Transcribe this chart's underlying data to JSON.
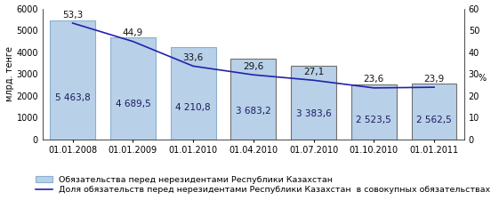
{
  "categories": [
    "01.01.2008",
    "01.01.2009",
    "01.01.2010",
    "01.04.2010",
    "01.07.2010",
    "01.10.2010",
    "01.01.2011"
  ],
  "bar_values": [
    5463.8,
    4689.5,
    4210.8,
    3683.2,
    3383.6,
    2523.5,
    2562.5
  ],
  "bar_labels": [
    "5 463,8",
    "4 689,5",
    "4 210,8",
    "3 683,2",
    "3 383,6",
    "2 523,5",
    "2 562,5"
  ],
  "line_values": [
    53.3,
    44.9,
    33.6,
    29.6,
    27.1,
    23.6,
    23.9
  ],
  "line_labels": [
    "53,3",
    "44,9",
    "33,6",
    "29,6",
    "27,1",
    "23,6",
    "23,9"
  ],
  "bar_color": "#b8d0e8",
  "bar_edge_color_light": "#8ab0d0",
  "bar_edge_color_dark": "#707070",
  "line_color": "#2222aa",
  "ylim_left": [
    0,
    6000
  ],
  "ylim_right": [
    0,
    60
  ],
  "yticks_left": [
    0,
    1000,
    2000,
    3000,
    4000,
    5000,
    6000
  ],
  "yticks_right": [
    0,
    10,
    20,
    30,
    40,
    50,
    60
  ],
  "ylabel_left": "млрд. тенге",
  "ylabel_right": "%",
  "legend_bar": "Обязательства перед нерезидентами Республики Казахстан",
  "legend_line": "Доля обязательств перед нерезидентами Республики Казахстан  в совокупных обязательствах, %",
  "bar_fontsize": 7.5,
  "line_label_fontsize": 7.5,
  "tick_fontsize": 7,
  "legend_fontsize": 6.8,
  "ylabel_fontsize": 7,
  "bar_width": 0.75
}
